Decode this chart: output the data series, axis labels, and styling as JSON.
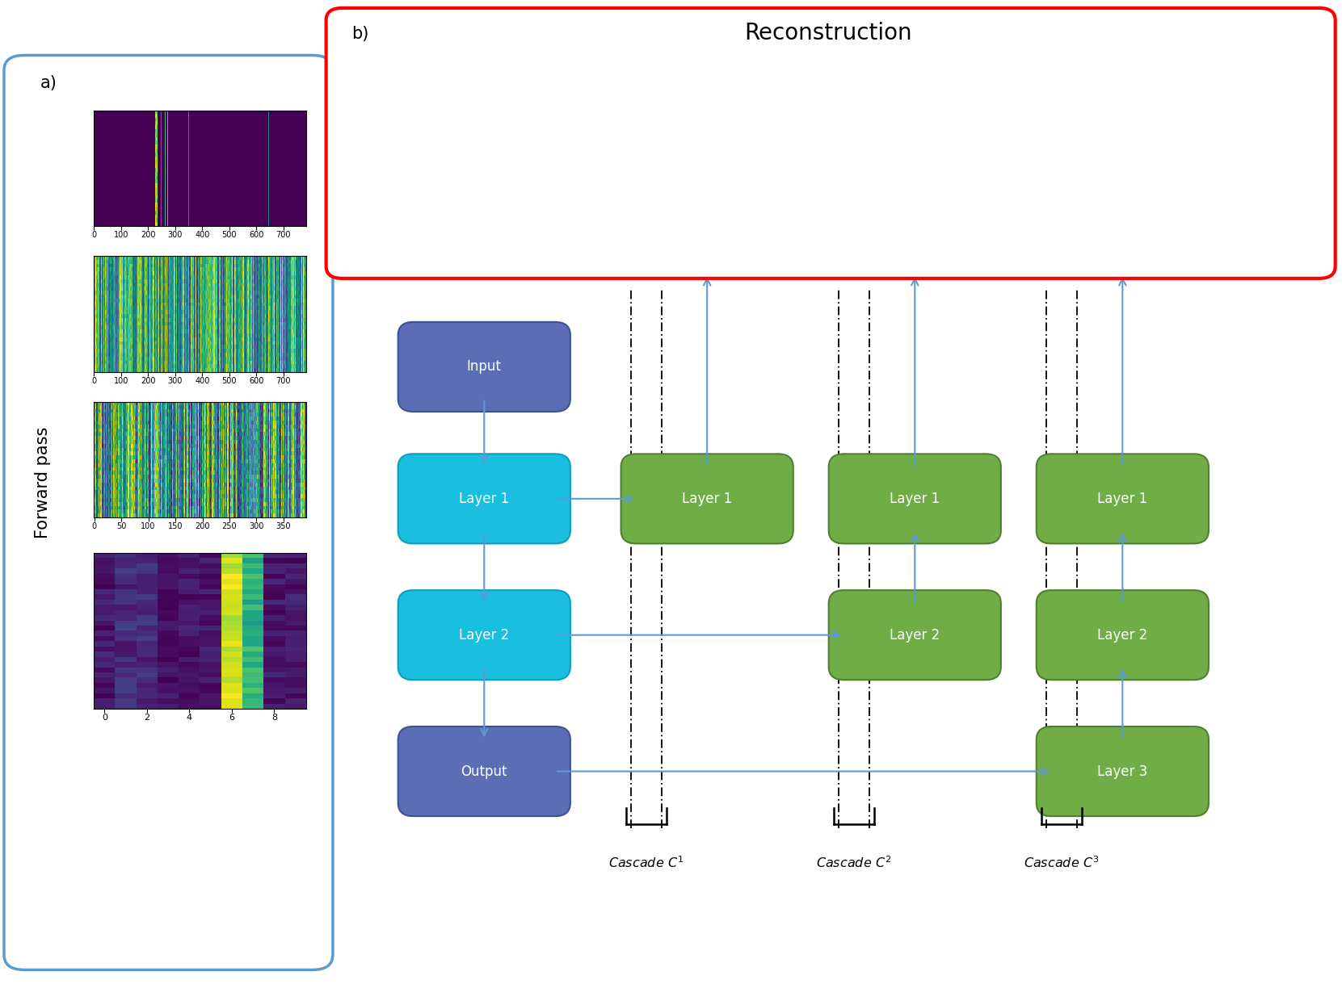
{
  "title": "Reconstruction",
  "panel_a_label": "a)",
  "panel_b_label": "b)",
  "forward_pass_label": "Forward pass",
  "blue_input_color": "#5b6eb5",
  "blue_input_edge": "#3a4f9e",
  "blue_layer_color": "#29b8d8",
  "blue_layer_edge": "#1a90b0",
  "blue_output_color": "#5b6eb5",
  "blue_output_edge": "#3a4f9e",
  "green_box_color": "#70ad47",
  "green_box_edge": "#4f8030",
  "input_label": "Input",
  "layer1_label": "Layer 1",
  "layer2_label": "Layer 2",
  "output_label": "Output",
  "layer3_label": "Layer 3",
  "cascade_labels": [
    "Cascade $C^1$",
    "Cascade $C^2$",
    "Cascade $C^3$"
  ],
  "arrow_color": "#5b9bd5",
  "left_panel_border": "#5b9bd5",
  "right_panel_border": "#ff0000"
}
